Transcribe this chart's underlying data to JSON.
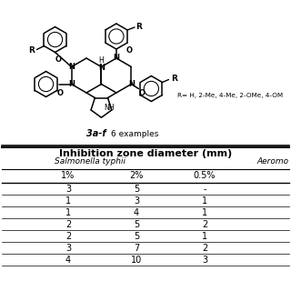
{
  "title": "Inhibition zone diameter (mm)",
  "col1_header": "Salmonella typhii",
  "col2_header": "Aeromo",
  "subheaders": [
    "1%",
    "2%",
    "0.5%"
  ],
  "rows": [
    [
      "3",
      "5",
      "-"
    ],
    [
      "1",
      "3",
      "1"
    ],
    [
      "1",
      "4",
      "1"
    ],
    [
      "2",
      "5",
      "2"
    ],
    [
      "2",
      "5",
      "1"
    ],
    [
      "3",
      "7",
      "2"
    ],
    [
      "4",
      "10",
      "3"
    ]
  ],
  "compound_label": "3a-f",
  "compound_note": "6 examples",
  "R_note": "R= H, 2-Me, 4-Me, 2-OMe, 4-OM",
  "background_color": "#ffffff"
}
